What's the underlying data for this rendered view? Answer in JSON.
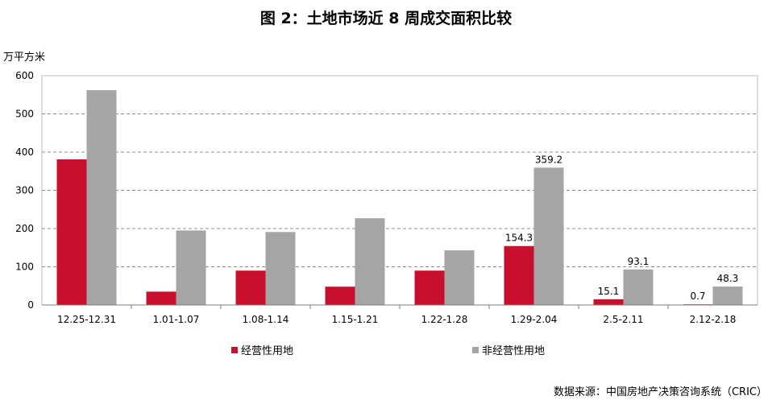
{
  "chart_data": {
    "type": "bar",
    "title": "图 2：土地市场近 8 周成交面积比较",
    "ylabel": "万平方米",
    "ylim": [
      0,
      600
    ],
    "yticks": [
      0,
      100,
      200,
      300,
      400,
      500,
      600
    ],
    "grid": true,
    "legend_position": "bottom",
    "categories": [
      "12.25-12.31",
      "1.01-1.07",
      "1.08-1.14",
      "1.15-1.21",
      "1.22-1.28",
      "1.29-2.04",
      "2.5-2.11",
      "2.12-2.18"
    ],
    "series": [
      {
        "name": "经营性用地",
        "color": "#C8102E",
        "values": [
          381,
          35,
          90,
          48,
          90,
          154.3,
          15.1,
          0.7
        ],
        "labels": [
          "",
          "",
          "",
          "",
          "",
          "154.3",
          "15.1",
          "0.7"
        ]
      },
      {
        "name": "非经营性用地",
        "color": "#A5A5A5",
        "values": [
          562,
          195,
          191,
          227,
          143,
          359.2,
          93.1,
          48.3
        ],
        "labels": [
          "",
          "",
          "",
          "",
          "",
          "359.2",
          "93.1",
          "48.3"
        ]
      }
    ]
  },
  "source_text": "数据来源：中国房地产决策咨询系统（CRIC）"
}
